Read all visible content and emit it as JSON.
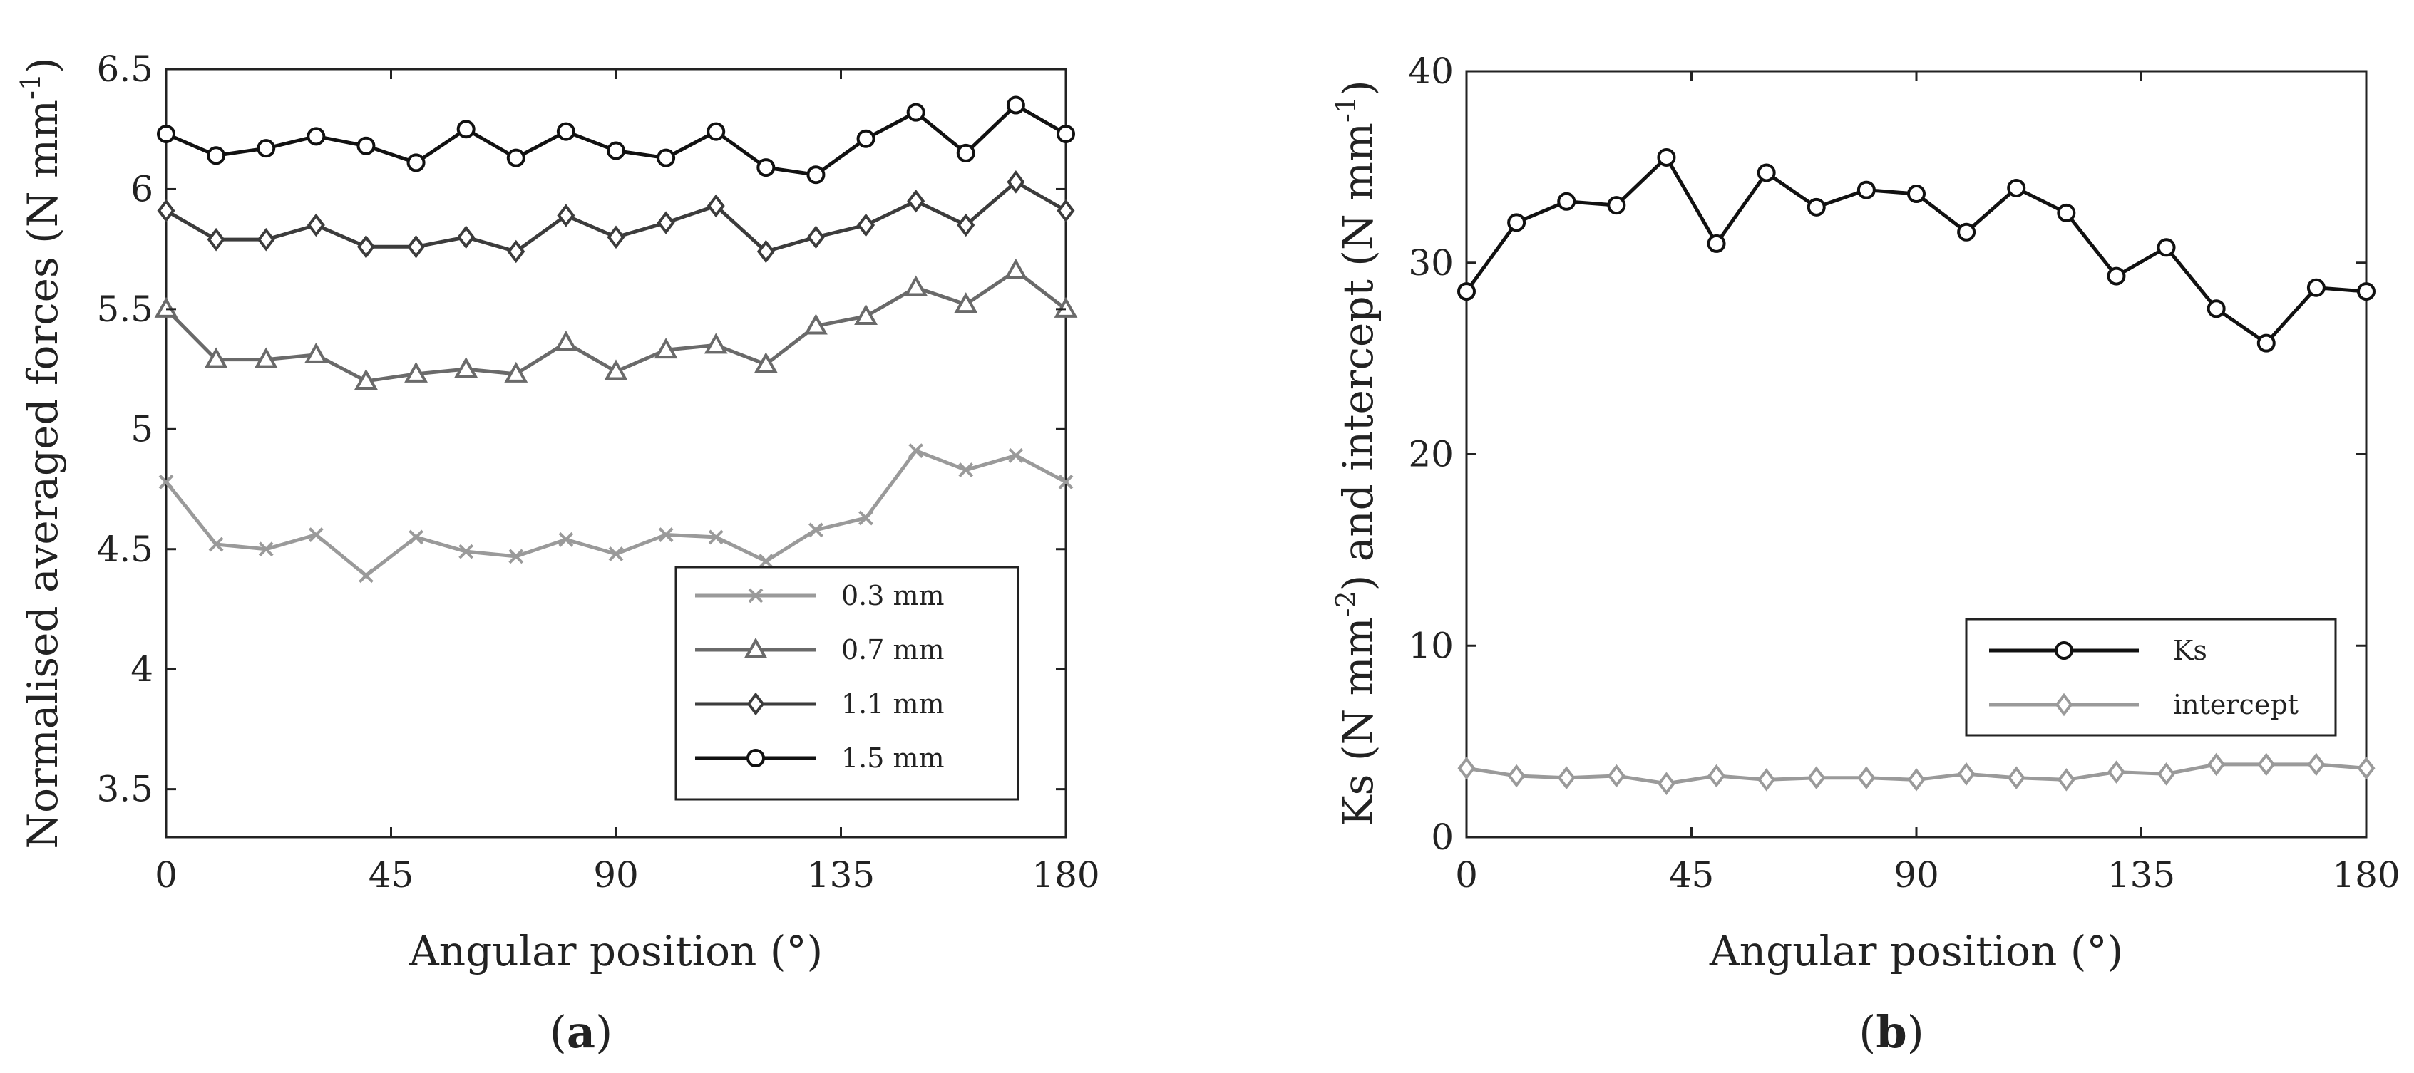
{
  "chart_data": [
    {
      "type": "line",
      "panel_label": {
        "open": "(",
        "letter": "a",
        "close": ")"
      },
      "xlabel": "Angular position (°)",
      "ylabel": {
        "main": "Normalised averaged forces (N mm",
        "sup": "-1",
        "close": ")"
      },
      "xlim": [
        0,
        180
      ],
      "ylim": [
        3.3,
        6.5
      ],
      "xticks": [
        0,
        45,
        90,
        135,
        180
      ],
      "xtick_labels": [
        "0",
        "45",
        "90",
        "135",
        "180"
      ],
      "yticks": [
        3.5,
        4,
        4.5,
        5,
        5.5,
        6,
        6.5
      ],
      "ytick_labels": [
        "3.5",
        "4",
        "4.5",
        "5",
        "5.5",
        "6",
        "6.5"
      ],
      "legend_position": "bottom-right",
      "x": [
        0,
        10,
        20,
        30,
        40,
        50,
        60,
        70,
        80,
        90,
        100,
        110,
        120,
        130,
        140,
        150,
        160,
        170,
        180
      ],
      "series": [
        {
          "name": "0.3 mm",
          "marker": "x",
          "color": "#9a9a9a",
          "values": [
            4.78,
            4.52,
            4.5,
            4.56,
            4.39,
            4.55,
            4.49,
            4.47,
            4.54,
            4.48,
            4.56,
            4.55,
            4.45,
            4.58,
            4.63,
            4.91,
            4.83,
            4.89,
            4.78
          ]
        },
        {
          "name": "0.7 mm",
          "marker": "triangle",
          "color": "#6a6a6a",
          "values": [
            5.5,
            5.29,
            5.29,
            5.31,
            5.2,
            5.23,
            5.25,
            5.23,
            5.36,
            5.24,
            5.33,
            5.35,
            5.27,
            5.43,
            5.47,
            5.59,
            5.52,
            5.66,
            5.5
          ]
        },
        {
          "name": "1.1 mm",
          "marker": "diamond",
          "color": "#3c3c3c",
          "values": [
            5.91,
            5.79,
            5.79,
            5.85,
            5.76,
            5.76,
            5.8,
            5.74,
            5.89,
            5.8,
            5.86,
            5.93,
            5.74,
            5.8,
            5.85,
            5.95,
            5.85,
            6.03,
            5.91
          ]
        },
        {
          "name": "1.5 mm",
          "marker": "circle",
          "color": "#111111",
          "values": [
            6.23,
            6.14,
            6.17,
            6.22,
            6.18,
            6.11,
            6.25,
            6.13,
            6.24,
            6.16,
            6.13,
            6.24,
            6.09,
            6.06,
            6.21,
            6.32,
            6.15,
            6.35,
            6.23
          ]
        }
      ]
    },
    {
      "type": "line",
      "panel_label": {
        "open": "(",
        "letter": "b",
        "close": ")"
      },
      "xlabel": "Angular position (°)",
      "ylabel": {
        "main": "Ks (N mm",
        "sup": "-2",
        "mid": ") and intercept (N mm",
        "sup2": "-1",
        "close": ")"
      },
      "xlim": [
        0,
        180
      ],
      "ylim": [
        0,
        40
      ],
      "xticks": [
        0,
        45,
        90,
        135,
        180
      ],
      "xtick_labels": [
        "0",
        "45",
        "90",
        "135",
        "180"
      ],
      "yticks": [
        0,
        10,
        20,
        30,
        40
      ],
      "ytick_labels": [
        "0",
        "10",
        "20",
        "30",
        "40"
      ],
      "legend_position": "bottom-right",
      "x": [
        0,
        10,
        20,
        30,
        40,
        50,
        60,
        70,
        80,
        90,
        100,
        110,
        120,
        130,
        140,
        150,
        160,
        170,
        180
      ],
      "series": [
        {
          "name": "Ks",
          "marker": "circle",
          "color": "#111111",
          "values": [
            28.5,
            32.1,
            33.2,
            33.0,
            35.5,
            31.0,
            34.7,
            32.9,
            33.8,
            33.6,
            31.6,
            33.9,
            32.6,
            29.3,
            30.8,
            27.6,
            25.8,
            28.7,
            28.5
          ]
        },
        {
          "name": "intercept",
          "marker": "diamond",
          "color": "#9a9a9a",
          "values": [
            3.6,
            3.2,
            3.1,
            3.2,
            2.8,
            3.2,
            3.0,
            3.1,
            3.1,
            3.0,
            3.3,
            3.1,
            3.0,
            3.4,
            3.3,
            3.8,
            3.8,
            3.8,
            3.6
          ]
        }
      ]
    }
  ]
}
